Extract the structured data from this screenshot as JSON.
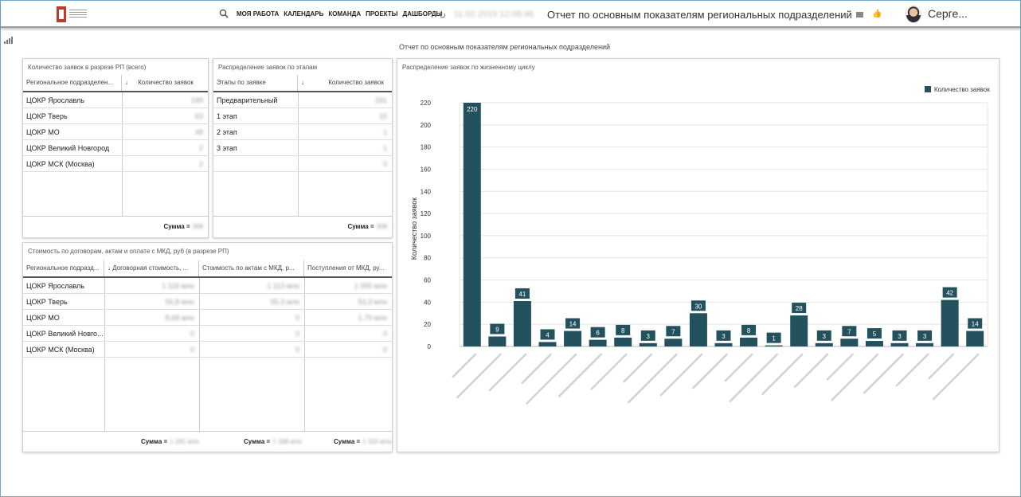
{
  "header": {
    "nav": [
      "МОЯ РАБОТА",
      "КАЛЕНДАРЬ",
      "КОМАНДА",
      "ПРОЕКТЫ",
      "ДАШБОРДЫ"
    ],
    "datetime": "11.02.2019 12:08:46",
    "title": "Отчет по основным показателям региональных подразделений",
    "user": "Серге..."
  },
  "page_subtitle": "Отчет по основным показателям региональных подразделений",
  "panel1": {
    "title": "Количество заявок в разрезе РП (всего)",
    "col1": "Региональное подразделен...",
    "sort_arrow": "↓",
    "col2": "Количество заявок",
    "rows": [
      {
        "name": "ЦОКР Ярославль",
        "value": "199"
      },
      {
        "name": "ЦОКР Тверь",
        "value": "63"
      },
      {
        "name": "ЦОКР МО",
        "value": "48"
      },
      {
        "name": "ЦОКР Великий Новгород",
        "value": "2"
      },
      {
        "name": "ЦОКР МСК (Москва)",
        "value": "2"
      }
    ],
    "sum_label": "Сумма =",
    "sum_value": "308"
  },
  "panel2": {
    "title": "Распределение заявок по этапам",
    "col1": "Этапы по заявке",
    "sort_arrow": "↓",
    "col2": "Количество заявок",
    "rows": [
      {
        "name": "Предварительный",
        "value": "291"
      },
      {
        "name": "1 этап",
        "value": "15"
      },
      {
        "name": "2 этап",
        "value": "1"
      },
      {
        "name": "3 этап",
        "value": "1"
      },
      {
        "name": "",
        "value": "0"
      }
    ],
    "sum_label": "Сумма =",
    "sum_value": "308"
  },
  "panel3": {
    "title": "Стоимость по договорам, актам и оплате с МКД, руб (в разрезе РП)",
    "cols": [
      "Региональное подразд...",
      "↓ Договорная стоимость, ...",
      "Стоимость по актам с МКД, р...",
      "Поступления от МКД, ру..."
    ],
    "rows": [
      {
        "name": "ЦОКР Ярославль",
        "v1": "1 116 млн",
        "v2": "1 113 млн",
        "v3": "1 055 млн"
      },
      {
        "name": "ЦОКР Тверь",
        "v1": "56,8 млн",
        "v2": "55,3 млн",
        "v3": "53,3 млн"
      },
      {
        "name": "ЦОКР МО",
        "v1": "8,68 млн",
        "v2": "0",
        "v3": "1,79 млн"
      },
      {
        "name": "ЦОКР Великий Новго...",
        "v1": "0",
        "v2": "0",
        "v3": "0"
      },
      {
        "name": "ЦОКР МСК (Москва)",
        "v1": "0",
        "v2": "0",
        "v3": "0"
      }
    ],
    "sum_label": "Сумма =",
    "sums": [
      "1 181 млн",
      "1 168 млн",
      "1 110 млн"
    ]
  },
  "chart_panel": {
    "title": "Распределение заявок по жизненному циклу"
  },
  "chart_data": {
    "type": "bar",
    "title": "Распределение заявок по жизненному циклу",
    "xlabel": "",
    "ylabel": "Количество заявок",
    "ylim": [
      0,
      220
    ],
    "yticks": [
      0,
      20,
      40,
      60,
      80,
      100,
      120,
      140,
      160,
      180,
      200,
      220
    ],
    "grid": true,
    "legend_position": "top-right",
    "series": [
      {
        "name": "Количество заявок",
        "color": "#23525e",
        "values": [
          220,
          9,
          41,
          4,
          14,
          6,
          8,
          3,
          7,
          30,
          3,
          8,
          1,
          28,
          3,
          7,
          5,
          3,
          3,
          42,
          14
        ]
      }
    ],
    "data_labels": true
  }
}
